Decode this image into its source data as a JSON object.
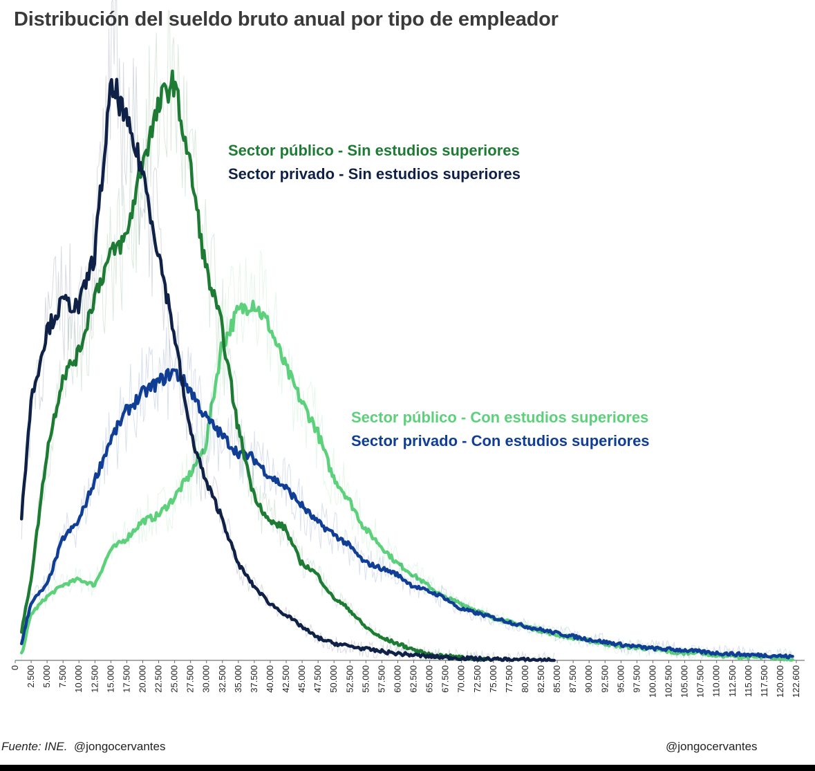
{
  "title": "Distribución del sueldo bruto anual por tipo de empleador",
  "legend": {
    "pub_sin": "Sector público - Sin estudios superiores",
    "priv_sin": "Sector privado - Sin estudios superiores",
    "pub_con": "Sector público - Con estudios superiores",
    "priv_con": "Sector privado - Con estudios superiores"
  },
  "footer": {
    "source": "Fuente: INE.",
    "handle_left": "@jongocervantes",
    "handle_right": "@jongocervantes"
  },
  "chart_data": {
    "type": "line",
    "title": "Distribución del sueldo bruto anual por tipo de empleador",
    "xlabel": "",
    "ylabel": "",
    "xlim": [
      0,
      124500
    ],
    "x_tick_labels": [
      "0",
      "2.500",
      "5.000",
      "7.500",
      "10.000",
      "12.500",
      "15.000",
      "17.500",
      "20.000",
      "22.500",
      "25.000",
      "27.500",
      "30.000",
      "32.500",
      "35.000",
      "37.500",
      "40.000",
      "42.500",
      "45.000",
      "47.500",
      "50.000",
      "52.500",
      "55.000",
      "57.500",
      "60.000",
      "62.500",
      "65.000",
      "67.500",
      "70.000",
      "72.500",
      "75.000",
      "77.500",
      "80.000",
      "82.500",
      "85.000",
      "87.500",
      "90.000",
      "92.500",
      "95.000",
      "97.500",
      "100.000",
      "102.500",
      "105.000",
      "107.500",
      "110.000",
      "112.500",
      "115.000",
      "117.500",
      "120.000",
      "122.600"
    ],
    "y_units": "relative density (unlabeled)",
    "series": [
      {
        "name": "Sector público - Sin estudios superiores",
        "color": "#1e7b34",
        "x": [
          1000,
          2500,
          5000,
          7500,
          10000,
          12500,
          15000,
          17500,
          20000,
          22500,
          23500,
          25000,
          27500,
          30000,
          32500,
          35000,
          37500,
          40000,
          42500,
          45000,
          47500,
          50000,
          52500,
          55000,
          57500,
          60000,
          62500,
          65000,
          67500,
          70000,
          72500,
          75000
        ],
        "y": [
          5,
          14,
          36,
          49,
          53,
          63,
          70,
          73,
          86,
          95,
          98,
          100,
          86,
          68,
          58,
          41,
          29,
          24,
          23,
          17,
          15,
          11,
          9,
          6,
          4,
          3,
          2,
          1,
          0.8,
          0.5,
          0.3,
          0.1
        ]
      },
      {
        "name": "Sector privado - Sin estudios superiores",
        "color": "#0f2146",
        "x": [
          1000,
          2500,
          5000,
          7500,
          10000,
          12500,
          15000,
          16000,
          17500,
          20000,
          22500,
          25000,
          27500,
          30000,
          32500,
          35000,
          37500,
          40000,
          42500,
          45000,
          47500,
          50000,
          55000,
          60000,
          65000,
          70000,
          75000,
          80000,
          85000
        ],
        "y": [
          25,
          45,
          57,
          62,
          61,
          70,
          98,
          98,
          93,
          85,
          71,
          57,
          40,
          31,
          25,
          17,
          13,
          10,
          8,
          6,
          4,
          3,
          2,
          1.2,
          0.7,
          0.4,
          0.2,
          0.1,
          0.05
        ]
      },
      {
        "name": "Sector público - Con estudios superiores",
        "color": "#5cd07a",
        "x": [
          1000,
          2500,
          5000,
          7500,
          10000,
          12500,
          15000,
          17500,
          20000,
          22500,
          25000,
          27500,
          30000,
          32500,
          35000,
          37500,
          40000,
          42500,
          45000,
          47500,
          50000,
          52500,
          55000,
          57500,
          60000,
          62500,
          65000,
          67500,
          70000,
          75000,
          80000,
          85000,
          90000,
          95000,
          100000,
          105000,
          107500,
          110000,
          115000,
          120000,
          122600
        ],
        "y": [
          1,
          8,
          11,
          13,
          14,
          13,
          19,
          21,
          24,
          25,
          28,
          32,
          37,
          54,
          60,
          62,
          58,
          51,
          45,
          40,
          32,
          28,
          23,
          20,
          17,
          15,
          13,
          11,
          10,
          7.5,
          6,
          4.5,
          3.5,
          2.5,
          2,
          1.2,
          1.5,
          0.9,
          0.6,
          0.4,
          0.3
        ]
      },
      {
        "name": "Sector privado - Con estudios superiores",
        "color": "#103e95",
        "x": [
          1000,
          2500,
          5000,
          7500,
          10000,
          12500,
          15000,
          17500,
          20000,
          22500,
          25000,
          27500,
          30000,
          32500,
          35000,
          37500,
          40000,
          42500,
          45000,
          47500,
          50000,
          52500,
          55000,
          57500,
          60000,
          62500,
          65000,
          67500,
          70000,
          75000,
          80000,
          85000,
          90000,
          95000,
          100000,
          105000,
          110000,
          115000,
          120000,
          122600
        ],
        "y": [
          3,
          10,
          13,
          21,
          24,
          31,
          38,
          43,
          46,
          48,
          50,
          47,
          42,
          39,
          36,
          35,
          32,
          30,
          27,
          24,
          22,
          20,
          17,
          16,
          15,
          13,
          12,
          11,
          9,
          7.5,
          6,
          4.8,
          3.7,
          2.8,
          2.1,
          1.8,
          1.3,
          1.0,
          0.8,
          0.6
        ]
      }
    ]
  }
}
